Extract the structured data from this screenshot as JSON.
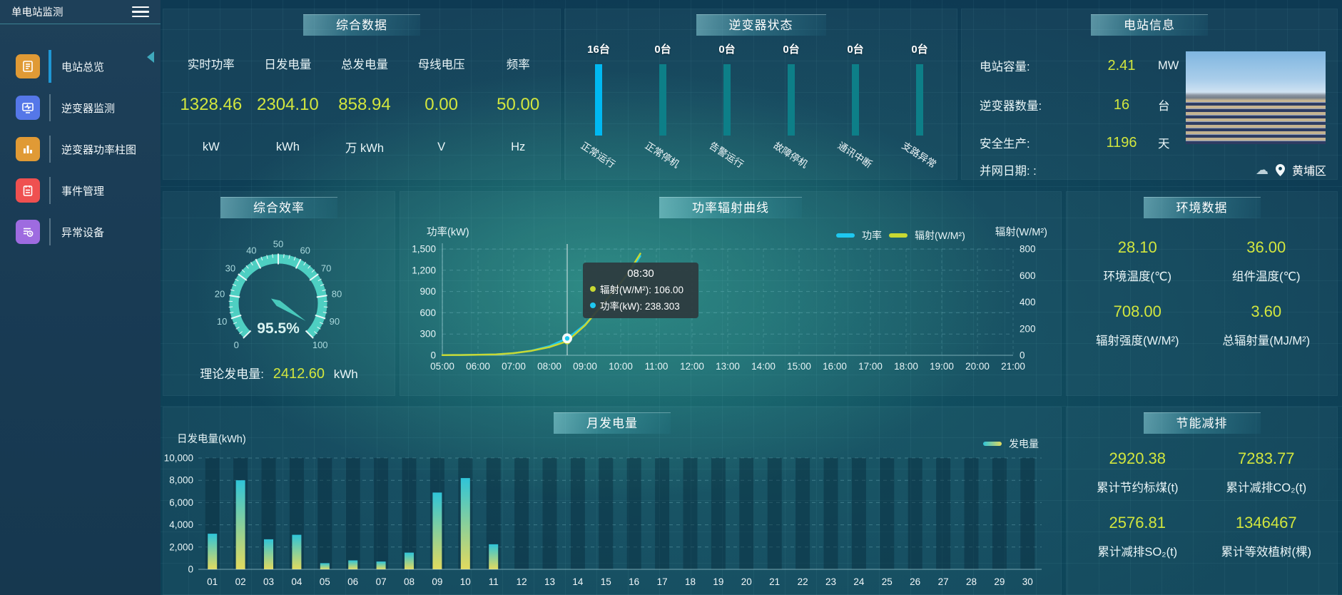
{
  "app": {
    "title": "单电站监测"
  },
  "sidebar": {
    "items": [
      {
        "label": "电站总览",
        "icon_color": "#e09a35",
        "active": true
      },
      {
        "label": "逆变器监测",
        "icon_color": "#5577e8",
        "active": false
      },
      {
        "label": "逆变器功率柱图",
        "icon_color": "#e09a35",
        "active": false
      },
      {
        "label": "事件管理",
        "icon_color": "#ef5050",
        "active": false
      },
      {
        "label": "异常设备",
        "icon_color": "#9e6be0",
        "active": false
      }
    ]
  },
  "panels": {
    "summary": {
      "title": "综合数据",
      "metrics": [
        {
          "label": "实时功率",
          "value": "1328.46",
          "unit": "kW"
        },
        {
          "label": "日发电量",
          "value": "2304.10",
          "unit": "kWh"
        },
        {
          "label": "总发电量",
          "value": "858.94",
          "unit": "万 kWh"
        },
        {
          "label": "母线电压",
          "value": "0.00",
          "unit": "V"
        },
        {
          "label": "频率",
          "value": "50.00",
          "unit": "Hz"
        }
      ]
    },
    "station_info": {
      "title": "电站信息",
      "rows": [
        {
          "label": "电站容量:",
          "value": "2.41",
          "unit": "MW"
        },
        {
          "label": "逆变器数量:",
          "value": "16",
          "unit": "台"
        },
        {
          "label": "安全生产:",
          "value": "1196",
          "unit": "天"
        }
      ],
      "grid_date_label": "并网日期: :",
      "location": "黄埔区"
    },
    "efficiency": {
      "title": "综合效率",
      "bottom_label": "理论发电量:",
      "bottom_value": "2412.60",
      "bottom_unit": "kWh"
    },
    "env": {
      "title": "环境数据",
      "metrics": [
        {
          "value": "28.10",
          "label": "环境温度(℃)"
        },
        {
          "value": "36.00",
          "label": "组件温度(℃)"
        },
        {
          "value": "708.00",
          "label": "辐射强度(W/M²)"
        },
        {
          "value": "3.60",
          "label": "总辐射量(MJ/M²)"
        }
      ]
    },
    "saving": {
      "title": "节能减排",
      "metrics": [
        {
          "value": "2920.38",
          "label": "累计节约标煤(t)"
        },
        {
          "value": "7283.77",
          "label": "累计减排CO₂(t)"
        },
        {
          "value": "2576.81",
          "label": "累计减排SO₂(t)"
        },
        {
          "value": "1346467",
          "label": "累计等效植树(棵)"
        }
      ]
    }
  },
  "colors": {
    "accent_value": "#d2e63e",
    "active_bar": "#00b9f2",
    "idle_bar": "#0d7f88",
    "gauge": "#4ecfc2",
    "power_line": "#1ec8f0",
    "radiation_line": "#c8d832"
  },
  "chart_data": [
    {
      "id": "inverter_status",
      "type": "bar",
      "title": "逆变器状态",
      "categories": [
        "正常运行",
        "正常停机",
        "告警运行",
        "故障停机",
        "通讯中断",
        "支路异常"
      ],
      "values": [
        16,
        0,
        0,
        0,
        0,
        0
      ],
      "value_labels": [
        "16台",
        "0台",
        "0台",
        "0台",
        "0台",
        "0台"
      ],
      "bar_colors": [
        "#00b9f2",
        "#0d7f88",
        "#0d7f88",
        "#0d7f88",
        "#0d7f88",
        "#0d7f88"
      ]
    },
    {
      "id": "efficiency_gauge",
      "type": "gauge",
      "title": "综合效率",
      "min": 0,
      "max": 100,
      "value": 95.5,
      "display": "95.5%",
      "tick_step": 10
    },
    {
      "id": "power_radiation",
      "type": "line",
      "title": "功率辐射曲线",
      "x_ticks": [
        "05:00",
        "06:00",
        "07:00",
        "08:00",
        "09:00",
        "10:00",
        "11:00",
        "12:00",
        "13:00",
        "14:00",
        "15:00",
        "16:00",
        "17:00",
        "18:00",
        "19:00",
        "20:00",
        "21:00"
      ],
      "ylabel_left": "功率(kW)",
      "ylim_left": [
        0,
        1500
      ],
      "yticks_left": [
        "0",
        "300",
        "600",
        "900",
        "1,200",
        "1,500"
      ],
      "ylabel_right": "辐射(W/M²)",
      "ylim_right": [
        0,
        800
      ],
      "yticks_right": [
        "0",
        "200",
        "400",
        "600",
        "800"
      ],
      "legend": [
        {
          "name": "功率",
          "color": "#1ec8f0"
        },
        {
          "name": "辐射(W/M²)",
          "color": "#c8d832"
        }
      ],
      "series": [
        {
          "name": "功率",
          "axis": "left",
          "color": "#1ec8f0",
          "points": [
            [
              5,
              3
            ],
            [
              5.5,
              4
            ],
            [
              6,
              7
            ],
            [
              6.5,
              13
            ],
            [
              7,
              30
            ],
            [
              7.5,
              65
            ],
            [
              8,
              130
            ],
            [
              8.5,
              238.3
            ],
            [
              9,
              435
            ],
            [
              9.5,
              710
            ],
            [
              10,
              1020
            ],
            [
              10.25,
              1160
            ],
            [
              10.55,
              1400
            ]
          ]
        },
        {
          "name": "辐射(W/M²)",
          "axis": "right",
          "color": "#c8d832",
          "points": [
            [
              5,
              1
            ],
            [
              5.5,
              2
            ],
            [
              6,
              4
            ],
            [
              6.5,
              7
            ],
            [
              7,
              16
            ],
            [
              7.5,
              34
            ],
            [
              8,
              62
            ],
            [
              8.5,
              106
            ],
            [
              9,
              225
            ],
            [
              9.5,
              385
            ],
            [
              10,
              545
            ],
            [
              10.25,
              635
            ],
            [
              10.55,
              765
            ]
          ]
        }
      ],
      "crosshair_time": 8.5,
      "highlight": {
        "power": 238.303,
        "radiation": 106.0
      },
      "tooltip": {
        "title": "08:30",
        "rows": [
          {
            "color": "#c8d832",
            "text": "辐射(W/M²): 106.00"
          },
          {
            "color": "#1ec8f0",
            "text": "功率(kW): 238.303"
          }
        ]
      }
    },
    {
      "id": "monthly_energy",
      "type": "bar",
      "title": "月发电量",
      "ylabel": "日发电量(kWh)",
      "ylim": [
        0,
        10000
      ],
      "yticks": [
        "0",
        "2,000",
        "4,000",
        "6,000",
        "8,000",
        "10,000"
      ],
      "categories": [
        "01",
        "02",
        "03",
        "04",
        "05",
        "06",
        "07",
        "08",
        "09",
        "10",
        "11",
        "12",
        "13",
        "14",
        "15",
        "16",
        "17",
        "18",
        "19",
        "20",
        "21",
        "22",
        "23",
        "24",
        "25",
        "26",
        "27",
        "28",
        "29",
        "30"
      ],
      "values": [
        3200,
        8000,
        2700,
        3100,
        550,
        800,
        700,
        1500,
        6900,
        8200,
        2250,
        0,
        0,
        0,
        0,
        0,
        0,
        0,
        0,
        0,
        0,
        0,
        0,
        0,
        0,
        0,
        0,
        0,
        0,
        0
      ],
      "legend": "发电量",
      "bar_gradient": [
        "#e2da5e",
        "#2fc4d8"
      ]
    }
  ]
}
